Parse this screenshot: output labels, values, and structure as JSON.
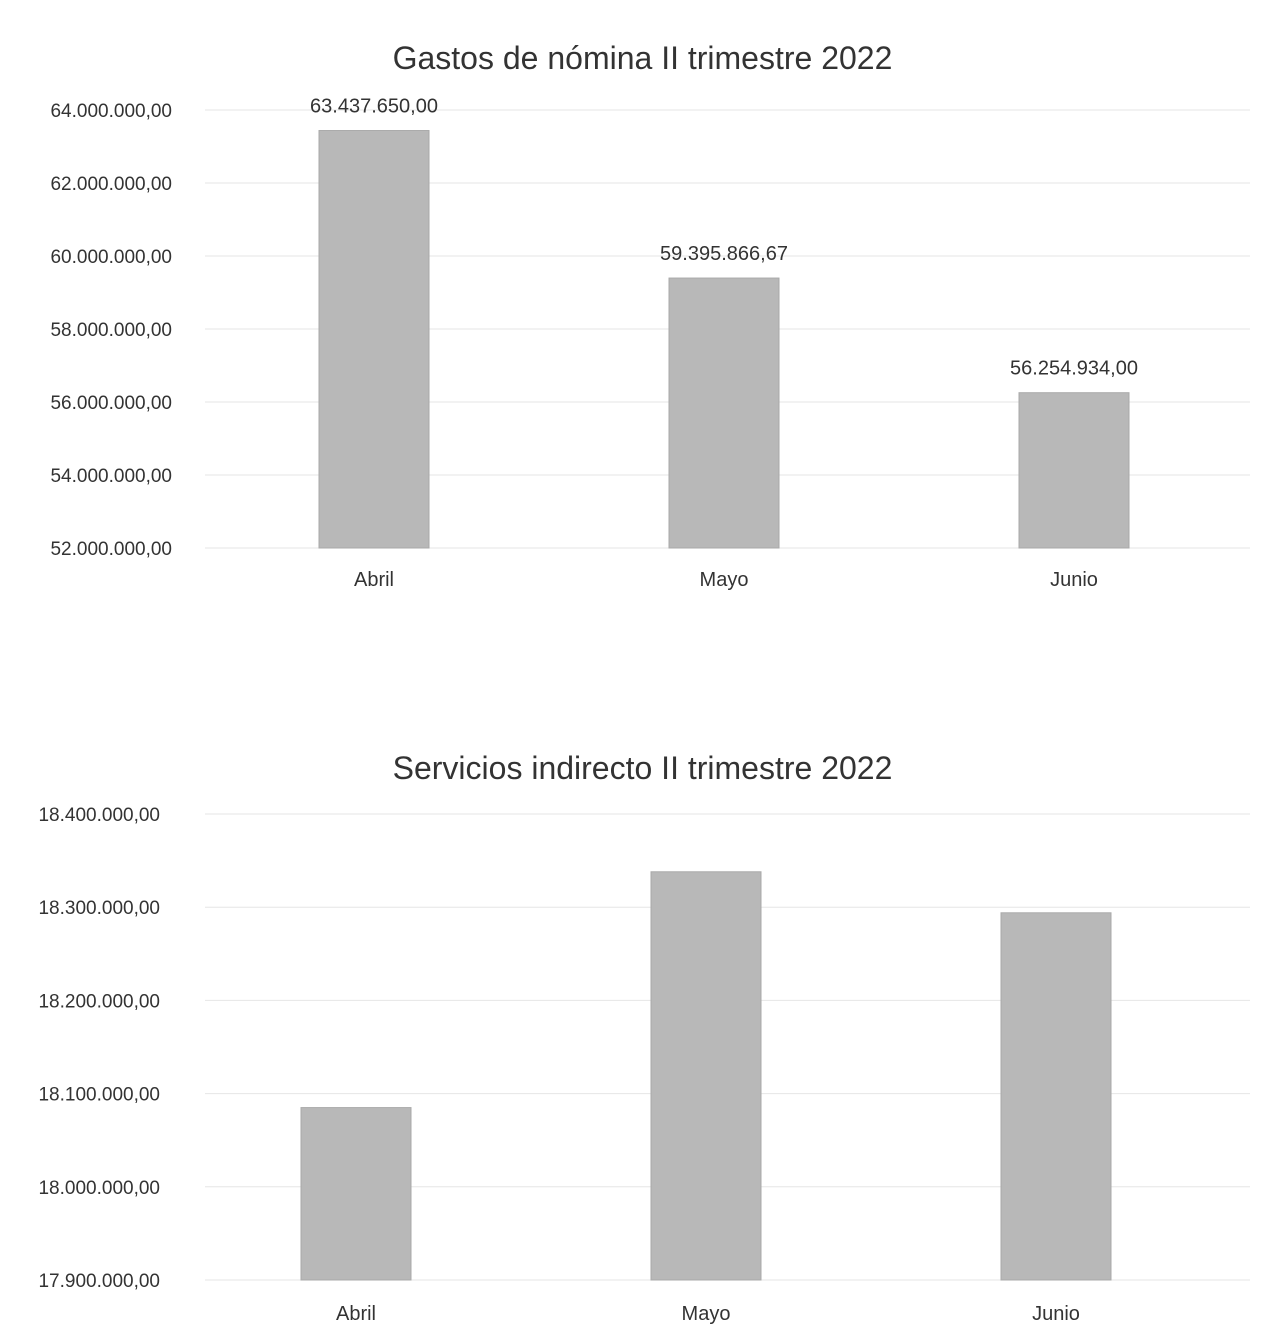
{
  "chart_data": [
    {
      "type": "bar",
      "title": "Gastos de nómina II trimestre 2022",
      "categories": [
        "Abril",
        "Mayo",
        "Junio"
      ],
      "values": [
        63437650.0,
        59395866.67,
        56254934.0
      ],
      "data_labels": [
        "63.437.650,00",
        "59.395.866,67",
        "56.254.934,00"
      ],
      "y_ticks": [
        52000000,
        54000000,
        56000000,
        58000000,
        60000000,
        62000000,
        64000000
      ],
      "y_tick_labels": [
        "52.000.000,00",
        "54.000.000,00",
        "56.000.000,00",
        "58.000.000,00",
        "60.000.000,00",
        "62.000.000,00",
        "64.000.000,00"
      ],
      "ylim": [
        52000000,
        64000000
      ],
      "xlabel": "",
      "ylabel": "",
      "grid": true,
      "bar_color": "#b8b8b8"
    },
    {
      "type": "bar",
      "title": "Servicios indirecto II trimestre 2022",
      "categories": [
        "Abril",
        "Mayo",
        "Junio"
      ],
      "values": [
        18085000,
        18338000,
        18294000
      ],
      "data_labels": [],
      "y_ticks": [
        17900000,
        18000000,
        18100000,
        18200000,
        18300000,
        18400000
      ],
      "y_tick_labels": [
        "17.900.000,00",
        "18.000.000,00",
        "18.100.000,00",
        "18.200.000,00",
        "18.300.000,00",
        "18.400.000,00"
      ],
      "ylim": [
        17900000,
        18400000
      ],
      "xlabel": "",
      "ylabel": "",
      "grid": true,
      "bar_color": "#b8b8b8"
    }
  ]
}
